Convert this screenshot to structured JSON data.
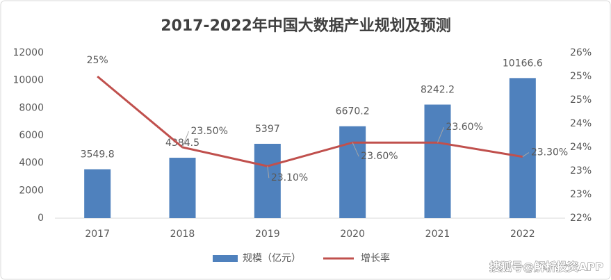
{
  "chart_data": {
    "type": "combo",
    "title": "2017-2022年中国大数据产业规划及预测",
    "categories": [
      "2017",
      "2018",
      "2019",
      "2020",
      "2021",
      "2022"
    ],
    "series": [
      {
        "name": "规模（亿元）",
        "type": "bar",
        "color": "#4f81bd",
        "values": [
          3549.8,
          4384.5,
          5397,
          6670.2,
          8242.2,
          10166.6
        ]
      },
      {
        "name": "增长率",
        "type": "line",
        "axis": "y2",
        "color": "#c0504d",
        "values": [
          25,
          23.5,
          23.1,
          23.6,
          23.6,
          23.3
        ],
        "value_labels": [
          "25%",
          "23.50%",
          "23.10%",
          "23.60%",
          "23.60%",
          "23.30%"
        ]
      }
    ],
    "ylim": [
      0,
      12000
    ],
    "yticks": [
      0,
      2000,
      4000,
      6000,
      8000,
      10000,
      12000
    ],
    "y2lim": [
      22,
      25.5
    ],
    "y2ticks": [
      {
        "value": 22,
        "label": "22%"
      },
      {
        "value": 22.5,
        "label": "23%"
      },
      {
        "value": 23,
        "label": "23%"
      },
      {
        "value": 23.5,
        "label": "24%"
      },
      {
        "value": 24,
        "label": "24%"
      },
      {
        "value": 24.5,
        "label": "25%"
      },
      {
        "value": 25,
        "label": "25%"
      },
      {
        "value": 25.5,
        "label": "26%"
      }
    ],
    "grid": false,
    "legend": "bottom",
    "watermark": "搜狐号@解析投资APP"
  }
}
